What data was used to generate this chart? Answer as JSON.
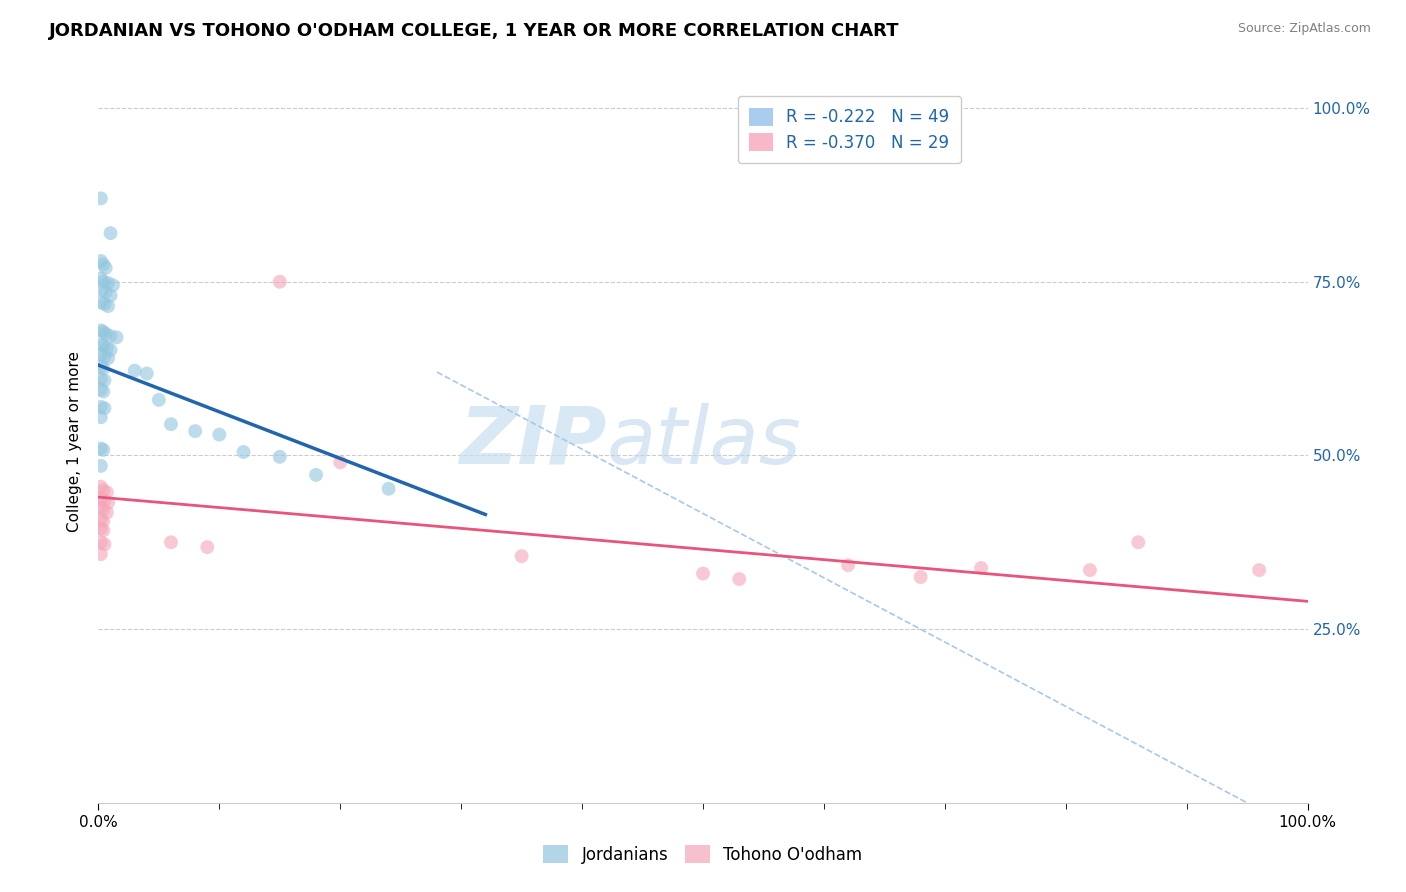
{
  "title": "JORDANIAN VS TOHONO O'ODHAM COLLEGE, 1 YEAR OR MORE CORRELATION CHART",
  "source": "Source: ZipAtlas.com",
  "ylabel": "College, 1 year or more",
  "legend_blue_label": "Jordanians",
  "legend_pink_label": "Tohono O'odham",
  "r_blue": -0.222,
  "n_blue": 49,
  "r_pink": -0.37,
  "n_pink": 29,
  "blue_color": "#92c5de",
  "pink_color": "#f4a6b8",
  "blue_line_color": "#2166ac",
  "pink_line_color": "#e8547a",
  "blue_scatter": [
    [
      0.002,
      0.87
    ],
    [
      0.01,
      0.82
    ],
    [
      0.002,
      0.78
    ],
    [
      0.004,
      0.775
    ],
    [
      0.006,
      0.77
    ],
    [
      0.002,
      0.755
    ],
    [
      0.004,
      0.75
    ],
    [
      0.008,
      0.748
    ],
    [
      0.012,
      0.745
    ],
    [
      0.003,
      0.738
    ],
    [
      0.006,
      0.735
    ],
    [
      0.01,
      0.73
    ],
    [
      0.002,
      0.72
    ],
    [
      0.005,
      0.718
    ],
    [
      0.008,
      0.715
    ],
    [
      0.002,
      0.68
    ],
    [
      0.004,
      0.678
    ],
    [
      0.006,
      0.675
    ],
    [
      0.01,
      0.672
    ],
    [
      0.015,
      0.67
    ],
    [
      0.002,
      0.66
    ],
    [
      0.004,
      0.658
    ],
    [
      0.007,
      0.655
    ],
    [
      0.01,
      0.652
    ],
    [
      0.002,
      0.645
    ],
    [
      0.005,
      0.642
    ],
    [
      0.008,
      0.64
    ],
    [
      0.002,
      0.628
    ],
    [
      0.004,
      0.625
    ],
    [
      0.002,
      0.61
    ],
    [
      0.005,
      0.608
    ],
    [
      0.03,
      0.622
    ],
    [
      0.04,
      0.618
    ],
    [
      0.002,
      0.595
    ],
    [
      0.004,
      0.592
    ],
    [
      0.05,
      0.58
    ],
    [
      0.002,
      0.57
    ],
    [
      0.005,
      0.568
    ],
    [
      0.002,
      0.555
    ],
    [
      0.06,
      0.545
    ],
    [
      0.08,
      0.535
    ],
    [
      0.1,
      0.53
    ],
    [
      0.002,
      0.51
    ],
    [
      0.004,
      0.508
    ],
    [
      0.12,
      0.505
    ],
    [
      0.15,
      0.498
    ],
    [
      0.002,
      0.485
    ],
    [
      0.18,
      0.472
    ],
    [
      0.24,
      0.452
    ]
  ],
  "pink_scatter": [
    [
      0.002,
      0.455
    ],
    [
      0.004,
      0.45
    ],
    [
      0.007,
      0.447
    ],
    [
      0.002,
      0.438
    ],
    [
      0.005,
      0.435
    ],
    [
      0.008,
      0.432
    ],
    [
      0.002,
      0.425
    ],
    [
      0.004,
      0.422
    ],
    [
      0.007,
      0.418
    ],
    [
      0.002,
      0.408
    ],
    [
      0.004,
      0.405
    ],
    [
      0.002,
      0.395
    ],
    [
      0.004,
      0.392
    ],
    [
      0.002,
      0.375
    ],
    [
      0.005,
      0.372
    ],
    [
      0.002,
      0.358
    ],
    [
      0.06,
      0.375
    ],
    [
      0.09,
      0.368
    ],
    [
      0.15,
      0.75
    ],
    [
      0.2,
      0.49
    ],
    [
      0.35,
      0.355
    ],
    [
      0.5,
      0.33
    ],
    [
      0.53,
      0.322
    ],
    [
      0.62,
      0.342
    ],
    [
      0.68,
      0.325
    ],
    [
      0.73,
      0.338
    ],
    [
      0.82,
      0.335
    ],
    [
      0.86,
      0.375
    ],
    [
      0.96,
      0.335
    ]
  ],
  "xlim": [
    0.0,
    1.0
  ],
  "ylim": [
    0.0,
    1.04
  ],
  "ytick_vals": [
    0.25,
    0.5,
    0.75,
    1.0
  ],
  "grid_color": "#cccccc",
  "background_color": "#ffffff",
  "watermark_zip": "ZIP",
  "watermark_atlas": "atlas",
  "title_fontsize": 13,
  "axis_label_fontsize": 11
}
